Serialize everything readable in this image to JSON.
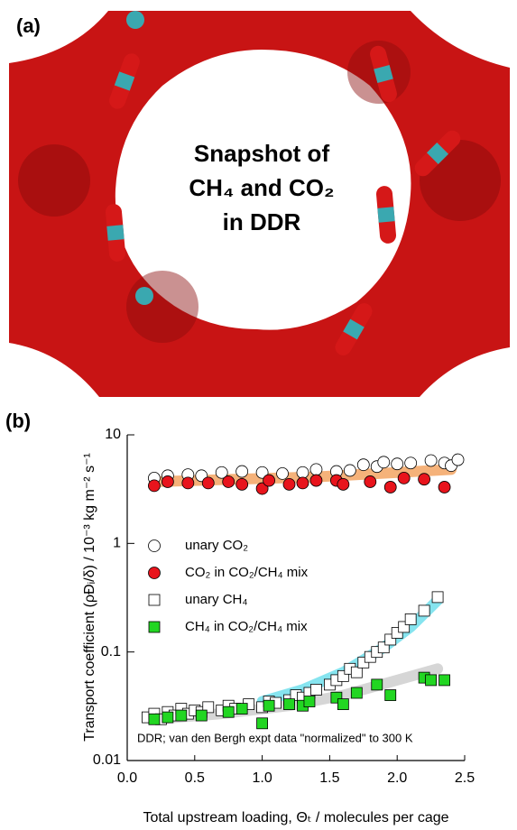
{
  "image_panel": {
    "label": "(a)",
    "caption_lines": [
      "Snapshot of",
      "CH₄ and CO₂",
      "in DDR"
    ]
  },
  "chart_data": {
    "type": "scatter",
    "panel_label": "(b)",
    "x_label": "Total upstream loading, Θₜ / molecules per cage",
    "y_label": "Transport coefficient (ρĐᵢ/δ) / 10⁻³ kg m⁻² s⁻¹",
    "annotation": "DDR; van den Bergh expt data \"normalized\" to 300 K",
    "log_y": true,
    "xlim": [
      0,
      2.5
    ],
    "xticks": [
      {
        "value": 0,
        "label": "0.0"
      },
      0.5,
      {
        "value": 1,
        "label": "1.0"
      },
      1.5,
      {
        "value": 2,
        "label": "2.0"
      },
      2.5
    ],
    "ylim": [
      0.01,
      10
    ],
    "yticks": [
      0.01,
      0.1,
      1,
      10
    ],
    "series": [
      {
        "name": "unary CO₂",
        "marker": "circle",
        "color": "#ffffff",
        "x": [
          0.2,
          0.3,
          0.45,
          0.55,
          0.7,
          0.85,
          1.0,
          1.15,
          1.3,
          1.4,
          1.55,
          1.65,
          1.75,
          1.85,
          1.9,
          2.0,
          2.1,
          2.25,
          2.35,
          2.4,
          2.45
        ],
        "values": [
          4.0,
          4.2,
          4.3,
          4.2,
          4.5,
          4.6,
          4.5,
          4.4,
          4.5,
          4.8,
          4.6,
          4.7,
          5.3,
          5.1,
          5.6,
          5.4,
          5.5,
          5.8,
          5.5,
          5.2,
          5.9
        ]
      },
      {
        "name": "CO₂ in CO₂/CH₄ mix",
        "marker": "circle",
        "color": "#e8141c",
        "x": [
          0.2,
          0.3,
          0.45,
          0.6,
          0.75,
          0.85,
          1.0,
          1.05,
          1.2,
          1.3,
          1.4,
          1.55,
          1.6,
          1.8,
          1.95,
          2.05,
          2.2,
          2.35
        ],
        "values": [
          3.4,
          3.7,
          3.6,
          3.6,
          3.7,
          3.5,
          3.2,
          3.8,
          3.5,
          3.6,
          3.8,
          3.8,
          3.5,
          3.7,
          3.3,
          4.0,
          3.9,
          3.3
        ]
      },
      {
        "name": "unary CH₄",
        "marker": "square",
        "color": "#ffffff",
        "x": [
          0.15,
          0.2,
          0.25,
          0.3,
          0.35,
          0.4,
          0.45,
          0.5,
          0.55,
          0.6,
          0.7,
          0.75,
          0.8,
          0.9,
          1.0,
          1.05,
          1.1,
          1.2,
          1.25,
          1.3,
          1.35,
          1.4,
          1.5,
          1.55,
          1.6,
          1.65,
          1.7,
          1.75,
          1.8,
          1.85,
          1.9,
          1.95,
          2.0,
          2.05,
          2.1,
          2.2,
          2.3
        ],
        "values": [
          0.025,
          0.027,
          0.024,
          0.028,
          0.026,
          0.03,
          0.027,
          0.029,
          0.028,
          0.031,
          0.029,
          0.032,
          0.03,
          0.033,
          0.031,
          0.035,
          0.034,
          0.036,
          0.04,
          0.038,
          0.042,
          0.045,
          0.05,
          0.055,
          0.06,
          0.07,
          0.065,
          0.08,
          0.09,
          0.1,
          0.11,
          0.13,
          0.15,
          0.17,
          0.2,
          0.24,
          0.32
        ]
      },
      {
        "name": "CH₄ in CO₂/CH₄ mix",
        "marker": "square",
        "color": "#22d622",
        "x": [
          0.2,
          0.3,
          0.4,
          0.55,
          0.75,
          0.85,
          1.0,
          1.05,
          1.2,
          1.3,
          1.35,
          1.55,
          1.6,
          1.7,
          1.85,
          1.95,
          2.2,
          2.25,
          2.35
        ],
        "values": [
          0.024,
          0.025,
          0.026,
          0.026,
          0.028,
          0.03,
          0.022,
          0.032,
          0.033,
          0.032,
          0.035,
          0.038,
          0.033,
          0.042,
          0.05,
          0.04,
          0.058,
          0.055,
          0.055
        ]
      }
    ],
    "fits": [
      {
        "color": "#f5b27a",
        "x": [
          0.2,
          0.8,
          1.4,
          2.0,
          2.4
        ],
        "values": [
          3.7,
          3.9,
          4.1,
          4.5,
          4.8
        ]
      },
      {
        "color": "#86e4ef",
        "x": [
          1.0,
          1.3,
          1.6,
          1.9,
          2.1,
          2.3
        ],
        "values": [
          0.035,
          0.045,
          0.065,
          0.11,
          0.17,
          0.3
        ]
      },
      {
        "color": "#d6d6d6",
        "x": [
          0.2,
          0.7,
          1.2,
          1.6,
          2.0,
          2.3
        ],
        "values": [
          0.024,
          0.027,
          0.032,
          0.04,
          0.055,
          0.07
        ]
      }
    ]
  }
}
